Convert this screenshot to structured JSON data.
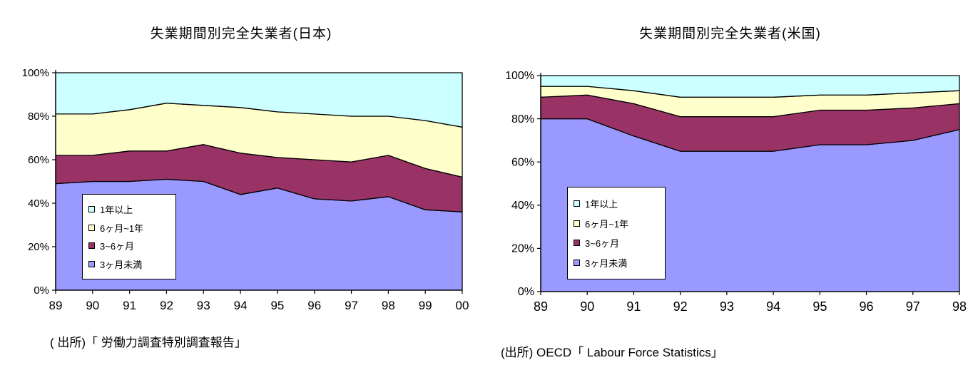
{
  "page": {
    "background": "#ffffff"
  },
  "chart_data": [
    {
      "type": "area",
      "stacked": true,
      "percent_stacked": true,
      "title": "失業期間別完全失業者(日本)",
      "source": "( 出所)「 労働力調査特別調査報告」",
      "x": [
        "89",
        "90",
        "91",
        "92",
        "93",
        "94",
        "95",
        "96",
        "97",
        "98",
        "99",
        "00"
      ],
      "xlabel": "",
      "ylabel": "",
      "ylim": [
        0,
        100
      ],
      "y_tick_values": [
        0,
        20,
        40,
        60,
        80,
        100
      ],
      "y_tick_labels": [
        "0%",
        "20%",
        "40%",
        "60%",
        "80%",
        "100%"
      ],
      "grid": false,
      "legend_position": "inside-lower-left",
      "legend_order_top_to_bottom": [
        "1年以上",
        "6ヶ月~1年",
        "3~6ヶ月",
        "3ヶ月未満"
      ],
      "series": [
        {
          "name": "3ヶ月未満",
          "color": "#9999FF",
          "values": [
            49,
            50,
            50,
            51,
            50,
            44,
            47,
            42,
            41,
            43,
            37,
            36
          ]
        },
        {
          "name": "3~6ヶ月",
          "color": "#993366",
          "values": [
            13,
            12,
            14,
            13,
            17,
            19,
            14,
            18,
            18,
            19,
            19,
            16
          ]
        },
        {
          "name": "6ヶ月~1年",
          "color": "#FFFFCC",
          "values": [
            19,
            19,
            19,
            22,
            18,
            21,
            21,
            21,
            21,
            18,
            22,
            23
          ]
        },
        {
          "name": "1年以上",
          "color": "#CCFFFF",
          "values": [
            19,
            19,
            17,
            14,
            15,
            16,
            18,
            19,
            20,
            20,
            22,
            25
          ]
        }
      ]
    },
    {
      "type": "area",
      "stacked": true,
      "percent_stacked": true,
      "title": "失業期間別完全失業者(米国)",
      "source": "(出所)  OECD「 Labour Force Statistics」",
      "x": [
        "89",
        "90",
        "91",
        "92",
        "93",
        "94",
        "95",
        "96",
        "97",
        "98"
      ],
      "xlabel": "",
      "ylabel": "",
      "ylim": [
        0,
        100
      ],
      "y_tick_values": [
        0,
        20,
        40,
        60,
        80,
        100
      ],
      "y_tick_labels": [
        "0%",
        "20%",
        "40%",
        "60%",
        "80%",
        "100%"
      ],
      "grid": false,
      "legend_position": "inside-lower-left",
      "legend_order_top_to_bottom": [
        "1年以上",
        "6ヶ月~1年",
        "3~6ヶ月",
        "3ヶ月未満"
      ],
      "series": [
        {
          "name": "3ヶ月未満",
          "color": "#9999FF",
          "values": [
            80,
            80,
            72,
            65,
            65,
            65,
            68,
            68,
            70,
            75
          ]
        },
        {
          "name": "3~6ヶ月",
          "color": "#993366",
          "values": [
            10,
            11,
            15,
            16,
            16,
            16,
            16,
            16,
            15,
            12
          ]
        },
        {
          "name": "6ヶ月~1年",
          "color": "#FFFFCC",
          "values": [
            5,
            4,
            6,
            9,
            9,
            9,
            7,
            7,
            7,
            6
          ]
        },
        {
          "name": "1年以上",
          "color": "#CCFFFF",
          "values": [
            5,
            5,
            7,
            10,
            10,
            10,
            9,
            9,
            8,
            7
          ]
        }
      ]
    }
  ],
  "axis_style": {
    "line_color": "#000000",
    "band_outline_color": "#000000"
  }
}
